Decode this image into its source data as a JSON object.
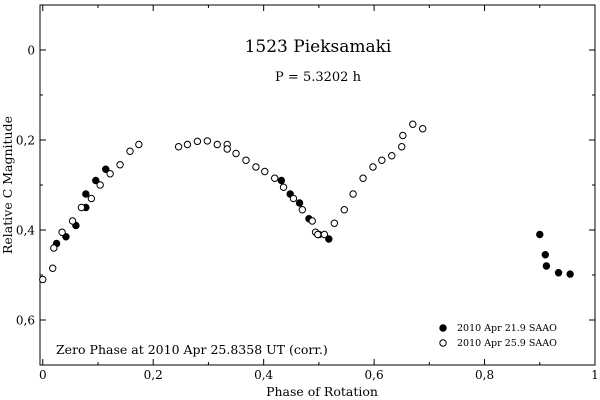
{
  "chart_data": {
    "type": "scatter",
    "title": "1523 Pieksamaki",
    "subtitle": "P = 5.3202 h",
    "xlabel": "Phase of Rotation",
    "ylabel": "Relative C Magnitude",
    "note": "Zero Phase at 2010 Apr 25.8358 UT (corr.)",
    "xlim": [
      -0.005,
      1.0
    ],
    "ylim": [
      -0.1,
      0.7
    ],
    "y_inverted": true,
    "x_ticks": [
      {
        "value": 0,
        "label": "0"
      },
      {
        "value": 0.2,
        "label": "0,2"
      },
      {
        "value": 0.4,
        "label": "0,4"
      },
      {
        "value": 0.6,
        "label": "0,6"
      },
      {
        "value": 0.8,
        "label": "0,8"
      },
      {
        "value": 1.0,
        "label": "1"
      }
    ],
    "y_ticks": [
      {
        "value": 0,
        "label": "0"
      },
      {
        "value": 0.2,
        "label": "0,2"
      },
      {
        "value": 0.4,
        "label": "0,4"
      },
      {
        "value": 0.6,
        "label": "0,6"
      }
    ],
    "legend_position": "bottom-right",
    "grid": false,
    "series": [
      {
        "name": "2010 Apr 21.9 SAAO",
        "marker": "filled-circle",
        "color": "#000000",
        "points": [
          [
            0.025,
            0.43
          ],
          [
            0.042,
            0.415
          ],
          [
            0.06,
            0.39
          ],
          [
            0.078,
            0.35
          ],
          [
            0.078,
            0.32
          ],
          [
            0.096,
            0.29
          ],
          [
            0.114,
            0.265
          ],
          [
            0.432,
            0.29
          ],
          [
            0.448,
            0.32
          ],
          [
            0.465,
            0.34
          ],
          [
            0.482,
            0.375
          ],
          [
            0.5,
            0.41
          ],
          [
            0.518,
            0.42
          ],
          [
            0.9,
            0.41
          ],
          [
            0.91,
            0.455
          ],
          [
            0.912,
            0.48
          ],
          [
            0.934,
            0.495
          ],
          [
            0.955,
            0.498
          ]
        ]
      },
      {
        "name": "2010 Apr 25.9 SAAO",
        "marker": "open-circle",
        "color": "#000000",
        "points": [
          [
            0.0,
            0.51
          ],
          [
            0.018,
            0.485
          ],
          [
            0.02,
            0.44
          ],
          [
            0.035,
            0.405
          ],
          [
            0.054,
            0.38
          ],
          [
            0.07,
            0.35
          ],
          [
            0.088,
            0.33
          ],
          [
            0.104,
            0.3
          ],
          [
            0.122,
            0.275
          ],
          [
            0.14,
            0.255
          ],
          [
            0.158,
            0.225
          ],
          [
            0.174,
            0.21
          ],
          [
            0.246,
            0.215
          ],
          [
            0.262,
            0.21
          ],
          [
            0.28,
            0.203
          ],
          [
            0.298,
            0.202
          ],
          [
            0.316,
            0.21
          ],
          [
            0.334,
            0.21
          ],
          [
            0.334,
            0.22
          ],
          [
            0.35,
            0.23
          ],
          [
            0.368,
            0.245
          ],
          [
            0.386,
            0.26
          ],
          [
            0.402,
            0.27
          ],
          [
            0.42,
            0.285
          ],
          [
            0.436,
            0.305
          ],
          [
            0.454,
            0.33
          ],
          [
            0.47,
            0.355
          ],
          [
            0.488,
            0.38
          ],
          [
            0.494,
            0.405
          ],
          [
            0.498,
            0.41
          ],
          [
            0.51,
            0.41
          ],
          [
            0.528,
            0.385
          ],
          [
            0.546,
            0.355
          ],
          [
            0.562,
            0.32
          ],
          [
            0.58,
            0.285
          ],
          [
            0.598,
            0.26
          ],
          [
            0.614,
            0.245
          ],
          [
            0.632,
            0.235
          ],
          [
            0.65,
            0.215
          ],
          [
            0.652,
            0.19
          ],
          [
            0.67,
            0.165
          ],
          [
            0.688,
            0.175
          ]
        ]
      }
    ]
  }
}
